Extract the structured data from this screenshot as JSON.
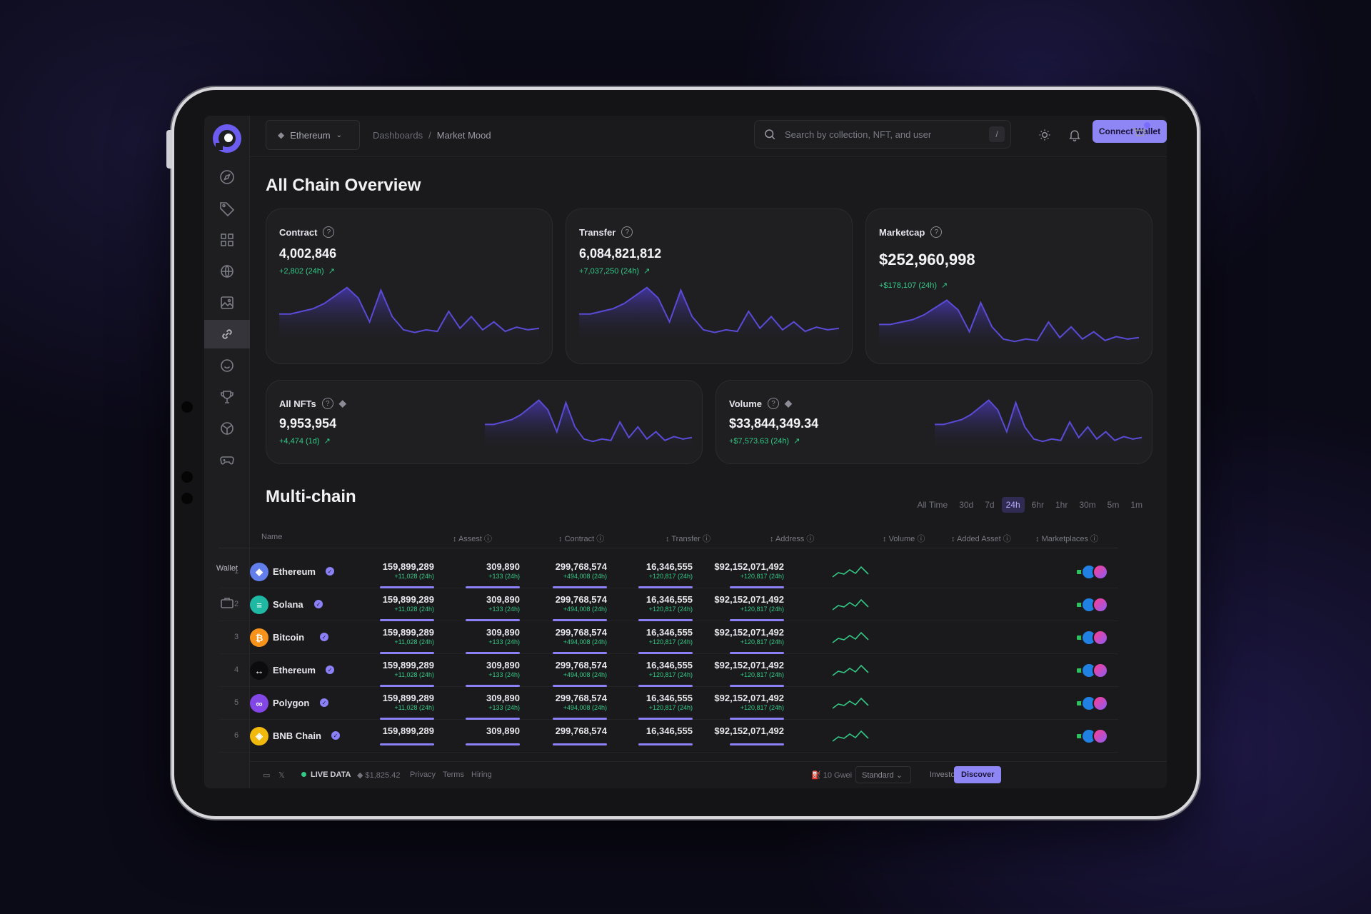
{
  "topbar": {
    "chain_selector": "Ethereum",
    "breadcrumb": [
      "Dashboards",
      "Market Mood"
    ],
    "search_placeholder": "Search by collection, NFT, and user",
    "search_shortcut": "/",
    "connect_wallet": "Connect Wallet"
  },
  "sidebar": {
    "icons": [
      "compass-icon",
      "tag-icon",
      "grid-icon",
      "globe-icon",
      "image-icon",
      "link-icon",
      "smile-icon",
      "trophy-icon",
      "box-icon",
      "gamepad-icon",
      "briefcase-icon"
    ],
    "active": "link-icon",
    "wallet_label": "Wallet"
  },
  "overview": {
    "title": "All Chain Overview",
    "cards": [
      {
        "label": "Contract",
        "value": "4,002,846",
        "change": "+2,802 (24h)",
        "eth": false
      },
      {
        "label": "Transfer",
        "value": "6,084,821,812",
        "change": "+7,037,250 (24h)",
        "eth": false
      },
      {
        "label": "Marketcap",
        "value": "$252,960,998",
        "change": "+$178,107 (24h)",
        "eth": false
      },
      {
        "label": "All NFTs",
        "value": "9,953,954",
        "change": "+4,474 (1d)",
        "eth": true
      },
      {
        "label": "Volume",
        "value": "$33,844,349.34",
        "change": "+$7,573.63 (24h)",
        "eth": true
      }
    ]
  },
  "multichain": {
    "title": "Multi-chain",
    "timeframes": [
      "All Time",
      "30d",
      "7d",
      "24h",
      "6hr",
      "1hr",
      "30m",
      "5m",
      "1m"
    ],
    "active_timeframe": "24h",
    "columns": [
      "Name",
      "Assest",
      "Contract",
      "Transfer",
      "Address",
      "Volume",
      "Added Asset",
      "Marketplaces"
    ],
    "rows": [
      {
        "rank": "1",
        "name": "Ethereum",
        "asset": "159,899,289",
        "asset_chg": "+11,028 (24h)",
        "contract": "309,890",
        "contract_chg": "+133 (24h)",
        "transfer": "299,768,574",
        "transfer_chg": "+494,008 (24h)",
        "address": "16,346,555",
        "address_chg": "+120,817 (24h)",
        "volume": "$92,152,071,492",
        "volume_chg": "+120,817 (24h)",
        "coin_color": "#627eea",
        "coin_glyph": "◆"
      },
      {
        "rank": "2",
        "name": "Solana",
        "asset": "159,899,289",
        "asset_chg": "+11,028 (24h)",
        "contract": "309,890",
        "contract_chg": "+133 (24h)",
        "transfer": "299,768,574",
        "transfer_chg": "+494,008 (24h)",
        "address": "16,346,555",
        "address_chg": "+120,817 (24h)",
        "volume": "$92,152,071,492",
        "volume_chg": "+120,817 (24h)",
        "coin_color": "#1fb8a3",
        "coin_glyph": "≡"
      },
      {
        "rank": "3",
        "name": "Bitcoin",
        "asset": "159,899,289",
        "asset_chg": "+11,028 (24h)",
        "contract": "309,890",
        "contract_chg": "+133 (24h)",
        "transfer": "299,768,574",
        "transfer_chg": "+494,008 (24h)",
        "address": "16,346,555",
        "address_chg": "+120,817 (24h)",
        "volume": "$92,152,071,492",
        "volume_chg": "+120,817 (24h)",
        "coin_color": "#f7931a",
        "coin_glyph": "₿"
      },
      {
        "rank": "4",
        "name": "Ethereum",
        "asset": "159,899,289",
        "asset_chg": "+11,028 (24h)",
        "contract": "309,890",
        "contract_chg": "+133 (24h)",
        "transfer": "299,768,574",
        "transfer_chg": "+494,008 (24h)",
        "address": "16,346,555",
        "address_chg": "+120,817 (24h)",
        "volume": "$92,152,071,492",
        "volume_chg": "+120,817 (24h)",
        "coin_color": "#0c0c0e",
        "coin_glyph": "↔"
      },
      {
        "rank": "5",
        "name": "Polygon",
        "asset": "159,899,289",
        "asset_chg": "+11,028 (24h)",
        "contract": "309,890",
        "contract_chg": "+133 (24h)",
        "transfer": "299,768,574",
        "transfer_chg": "+494,008 (24h)",
        "address": "16,346,555",
        "address_chg": "+120,817 (24h)",
        "volume": "$92,152,071,492",
        "volume_chg": "+120,817 (24h)",
        "coin_color": "#8247e5",
        "coin_glyph": "∞"
      },
      {
        "rank": "6",
        "name": "BNB Chain",
        "asset": "159,899,289",
        "asset_chg": "",
        "contract": "309,890",
        "contract_chg": "",
        "transfer": "299,768,574",
        "transfer_chg": "",
        "address": "16,346,555",
        "address_chg": "",
        "volume": "$92,152,071,492",
        "volume_chg": "",
        "coin_color": "#f0b90b",
        "coin_glyph": "◈"
      }
    ]
  },
  "footer": {
    "live_data": "LIVE DATA",
    "eth_price": "$1,825.42",
    "links": [
      "Privacy",
      "Terms",
      "Hiring"
    ],
    "gas": "10 Gwei",
    "mode_select": "Standard",
    "toggle": [
      "Investor",
      "Discover"
    ],
    "active_toggle": "Discover"
  },
  "colors": {
    "accent": "#8f86f5",
    "positive": "#33c986",
    "chart_fill": "#2a2066",
    "chart_line": "#5a4bd6"
  }
}
